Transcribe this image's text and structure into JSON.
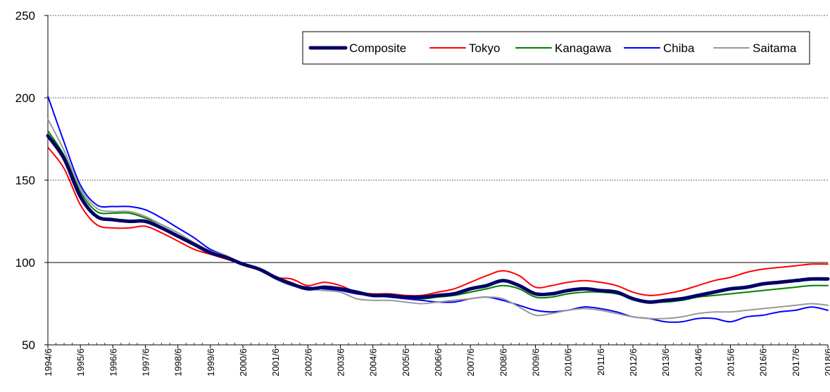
{
  "chart_data": {
    "type": "line",
    "title": "",
    "xlabel": "",
    "ylabel": "",
    "ylim": [
      50,
      250
    ],
    "yticks": [
      "50",
      "100",
      "150",
      "200",
      "250"
    ],
    "xlim": [
      1994.5,
      2018.5
    ],
    "xtick_labels": [
      "1994/6",
      "1995/6",
      "1996/6",
      "1997/6",
      "1998/6",
      "1999/6",
      "2000/6",
      "2001/6",
      "2002/6",
      "2003/6",
      "2004/6",
      "2005/6",
      "2006/6",
      "2007/6",
      "2008/6",
      "2009/6",
      "2010/6",
      "2011/6",
      "2012/6",
      "2013/6",
      "2014/6",
      "2015/6",
      "2016/6",
      "2017/6",
      "2018/6"
    ],
    "grid": "horizontal dotted",
    "reference_line": 100,
    "legend_position": "top-right",
    "x": [
      1994.5,
      1995.0,
      1995.5,
      1996.0,
      1996.5,
      1997.0,
      1997.5,
      1998.0,
      1998.5,
      1999.0,
      1999.5,
      2000.0,
      2000.5,
      2001.0,
      2001.5,
      2002.0,
      2002.5,
      2003.0,
      2003.5,
      2004.0,
      2004.5,
      2005.0,
      2005.5,
      2006.0,
      2006.5,
      2007.0,
      2007.5,
      2008.0,
      2008.5,
      2009.0,
      2009.5,
      2010.0,
      2010.5,
      2011.0,
      2011.5,
      2012.0,
      2012.5,
      2013.0,
      2013.5,
      2014.0,
      2014.5,
      2015.0,
      2015.5,
      2016.0,
      2016.5,
      2017.0,
      2017.5,
      2018.0,
      2018.5
    ],
    "series": [
      {
        "name": "Composite",
        "color": "#000066",
        "width": 5,
        "values": [
          177,
          163,
          140,
          128,
          126,
          125,
          125,
          121,
          116,
          111,
          106,
          103,
          99,
          96,
          91,
          87,
          84,
          85,
          84,
          82,
          80,
          80,
          79,
          79,
          80,
          81,
          84,
          86,
          89,
          86,
          81,
          81,
          83,
          84,
          83,
          82,
          78,
          76,
          77,
          78,
          80,
          82,
          84,
          85,
          87,
          88,
          89,
          90,
          90
        ]
      },
      {
        "name": "Tokyo",
        "color": "#ff0000",
        "width": 2,
        "values": [
          170,
          157,
          135,
          123,
          121,
          121,
          122,
          118,
          113,
          108,
          105,
          102,
          99,
          96,
          91,
          90,
          86,
          88,
          86,
          82,
          81,
          81,
          80,
          80,
          82,
          84,
          88,
          92,
          95,
          92,
          85,
          86,
          88,
          89,
          88,
          86,
          82,
          80,
          81,
          83,
          86,
          89,
          91,
          94,
          96,
          97,
          98,
          99,
          99
        ]
      },
      {
        "name": "Kanagawa",
        "color": "#008000",
        "width": 2,
        "values": [
          180,
          165,
          143,
          131,
          130,
          130,
          127,
          123,
          118,
          112,
          107,
          104,
          99,
          96,
          91,
          87,
          85,
          84,
          83,
          81,
          80,
          80,
          79,
          78,
          79,
          80,
          82,
          84,
          86,
          84,
          79,
          79,
          81,
          82,
          82,
          81,
          78,
          76,
          76,
          77,
          79,
          80,
          81,
          82,
          83,
          84,
          85,
          86,
          86
        ]
      },
      {
        "name": "Chiba",
        "color": "#0000ff",
        "width": 2,
        "values": [
          201,
          173,
          147,
          135,
          134,
          134,
          132,
          127,
          121,
          115,
          108,
          104,
          99,
          96,
          90,
          86,
          85,
          84,
          83,
          81,
          80,
          79,
          78,
          77,
          76,
          76,
          78,
          79,
          77,
          74,
          71,
          70,
          71,
          73,
          72,
          70,
          67,
          66,
          64,
          64,
          66,
          66,
          64,
          67,
          68,
          70,
          71,
          73,
          71
        ]
      },
      {
        "name": "Saitama",
        "color": "#999999",
        "width": 2,
        "values": [
          187,
          168,
          145,
          133,
          131,
          131,
          128,
          123,
          118,
          112,
          107,
          104,
          99,
          96,
          90,
          86,
          84,
          83,
          82,
          78,
          77,
          77,
          76,
          75,
          76,
          77,
          78,
          79,
          78,
          73,
          68,
          69,
          71,
          72,
          71,
          69,
          67,
          66,
          66,
          67,
          69,
          70,
          70,
          71,
          72,
          73,
          74,
          75,
          74
        ]
      }
    ]
  }
}
